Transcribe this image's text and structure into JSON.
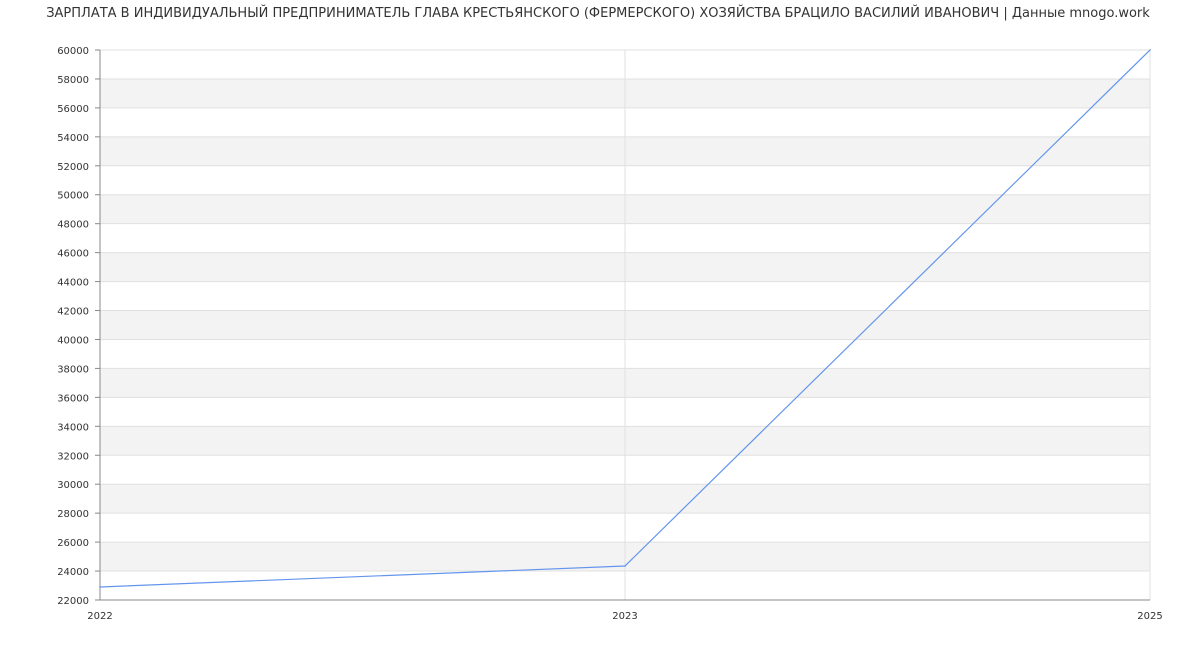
{
  "chart_data": {
    "type": "line",
    "title": "ЗАРПЛАТА В ИНДИВИДУАЛЬНЫЙ ПРЕДПРИНИМАТЕЛЬ ГЛАВА КРЕСТЬЯНСКОГО (ФЕРМЕРСКОГО) ХОЗЯЙСТВА БРАЦИЛО ВАСИЛИЙ ИВАНОВИЧ | Данные mnogo.work",
    "xlabel": "",
    "ylabel": "",
    "categories": [
      "2022",
      "2023",
      "2025"
    ],
    "series": [
      {
        "values": [
          22900,
          24350,
          60000
        ],
        "color": "#6495ed"
      }
    ],
    "ylim": [
      22000,
      60000
    ],
    "ytick_step": 2000,
    "grid": true,
    "band_color": "#f3f3f3",
    "grid_color": "#e0e0e0",
    "axis_color": "#888888"
  }
}
